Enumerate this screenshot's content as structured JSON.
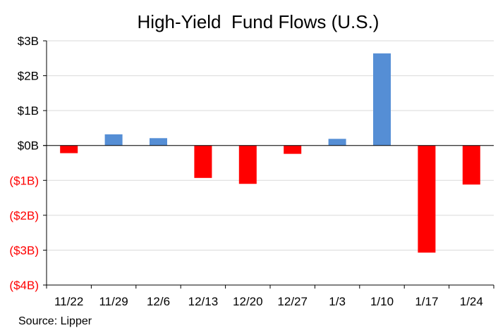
{
  "chart_data": {
    "type": "bar",
    "title": "High-Yield  Fund Flows (U.S.)",
    "categories": [
      "11/22",
      "11/29",
      "12/6",
      "12/13",
      "12/20",
      "12/27",
      "1/3",
      "1/10",
      "1/17",
      "1/24"
    ],
    "values": [
      -0.22,
      0.32,
      0.21,
      -0.93,
      -1.1,
      -0.24,
      0.19,
      2.64,
      -3.07,
      -1.12
    ],
    "yticks": [
      3,
      2,
      1,
      0,
      -1,
      -2,
      -3,
      -4
    ],
    "ytick_labels": [
      "$3B",
      "$2B",
      "$1B",
      "$0B",
      "($1B)",
      "($2B)",
      "($3B)",
      "($4B)"
    ],
    "ylim": [
      -4,
      3
    ],
    "grid": true,
    "colors": {
      "positive": "#558ed5",
      "negative": "#ff0000",
      "negative_label": "#ff0000",
      "grid": "#d9d9d9",
      "axis": "#000000"
    }
  },
  "source": "Source: Lipper"
}
